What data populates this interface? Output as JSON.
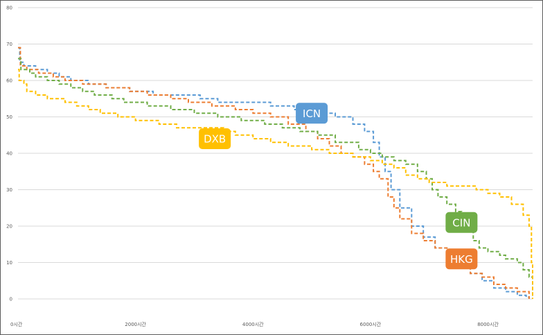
{
  "chart_data": {
    "type": "line",
    "title": "",
    "xlabel": "",
    "ylabel": "",
    "xlim": [
      0,
      8760
    ],
    "ylim": [
      0,
      80
    ],
    "y_ticks": [
      0,
      10,
      20,
      30,
      40,
      50,
      60,
      70,
      80
    ],
    "x_ticks": [
      {
        "value": 0,
        "label": "0시간"
      },
      {
        "value": 2000,
        "label": "2000시간"
      },
      {
        "value": 4000,
        "label": "4000시간"
      },
      {
        "value": 6000,
        "label": "6000시간"
      },
      {
        "value": 8000,
        "label": "8000시간"
      }
    ],
    "grid": true,
    "legend": "none",
    "series": [
      {
        "name": "ICN",
        "color": "#5b9bd5",
        "label_at": [
          5000,
          51
        ],
        "points": [
          [
            0,
            69
          ],
          [
            30,
            65
          ],
          [
            100,
            64
          ],
          [
            300,
            63
          ],
          [
            500,
            62
          ],
          [
            700,
            61
          ],
          [
            900,
            60
          ],
          [
            1200,
            59
          ],
          [
            1500,
            58
          ],
          [
            1900,
            57
          ],
          [
            2300,
            56
          ],
          [
            2700,
            56
          ],
          [
            3100,
            55
          ],
          [
            3400,
            54
          ],
          [
            3900,
            54
          ],
          [
            4300,
            53
          ],
          [
            4700,
            52
          ],
          [
            5100,
            51
          ],
          [
            5400,
            50
          ],
          [
            5700,
            48
          ],
          [
            5900,
            46
          ],
          [
            6050,
            43
          ],
          [
            6150,
            39
          ],
          [
            6250,
            35
          ],
          [
            6350,
            30
          ],
          [
            6500,
            25
          ],
          [
            6700,
            20
          ],
          [
            6900,
            17
          ],
          [
            7100,
            14
          ],
          [
            7300,
            11
          ],
          [
            7500,
            9
          ],
          [
            7700,
            7
          ],
          [
            7900,
            5
          ],
          [
            8100,
            3
          ],
          [
            8300,
            2
          ],
          [
            8500,
            1
          ],
          [
            8650,
            0.5
          ],
          [
            8700,
            0
          ]
        ]
      },
      {
        "name": "HKG",
        "color": "#ed7d31",
        "label_at": [
          7550,
          11
        ],
        "points": [
          [
            0,
            69
          ],
          [
            40,
            64
          ],
          [
            150,
            63
          ],
          [
            350,
            62
          ],
          [
            600,
            61
          ],
          [
            800,
            60
          ],
          [
            1100,
            59
          ],
          [
            1500,
            58
          ],
          [
            1900,
            57
          ],
          [
            2200,
            56
          ],
          [
            2600,
            55
          ],
          [
            2900,
            54
          ],
          [
            3300,
            53
          ],
          [
            3700,
            52
          ],
          [
            4000,
            51
          ],
          [
            4300,
            50
          ],
          [
            4600,
            48
          ],
          [
            4900,
            46
          ],
          [
            5100,
            44
          ],
          [
            5300,
            42
          ],
          [
            5500,
            40
          ],
          [
            5700,
            39
          ],
          [
            5900,
            37
          ],
          [
            6050,
            35
          ],
          [
            6150,
            33
          ],
          [
            6300,
            28
          ],
          [
            6400,
            25
          ],
          [
            6500,
            22
          ],
          [
            6700,
            18
          ],
          [
            6900,
            16
          ],
          [
            7100,
            14
          ],
          [
            7300,
            12
          ],
          [
            7500,
            9
          ],
          [
            7700,
            7
          ],
          [
            7900,
            6
          ],
          [
            8100,
            4
          ],
          [
            8300,
            3
          ],
          [
            8500,
            2
          ],
          [
            8700,
            0
          ]
        ]
      },
      {
        "name": "CIN",
        "color": "#70ad47",
        "label_at": [
          7550,
          21
        ],
        "points": [
          [
            0,
            66
          ],
          [
            50,
            63
          ],
          [
            200,
            62
          ],
          [
            300,
            61
          ],
          [
            500,
            60
          ],
          [
            700,
            59
          ],
          [
            900,
            58
          ],
          [
            1100,
            57
          ],
          [
            1300,
            56
          ],
          [
            1600,
            55
          ],
          [
            1800,
            54
          ],
          [
            2200,
            53
          ],
          [
            2600,
            52
          ],
          [
            3000,
            51
          ],
          [
            3400,
            50
          ],
          [
            3800,
            49
          ],
          [
            4200,
            48
          ],
          [
            4500,
            47
          ],
          [
            4800,
            46
          ],
          [
            5100,
            45
          ],
          [
            5400,
            43
          ],
          [
            5800,
            41
          ],
          [
            6000,
            40
          ],
          [
            6200,
            39
          ],
          [
            6400,
            38
          ],
          [
            6600,
            37
          ],
          [
            6800,
            35
          ],
          [
            6950,
            33
          ],
          [
            7050,
            30
          ],
          [
            7150,
            28
          ],
          [
            7300,
            26
          ],
          [
            7450,
            24
          ],
          [
            7550,
            22
          ],
          [
            7650,
            19
          ],
          [
            7750,
            16
          ],
          [
            7850,
            14
          ],
          [
            8000,
            13
          ],
          [
            8200,
            12
          ],
          [
            8300,
            11
          ],
          [
            8500,
            10
          ],
          [
            8600,
            8
          ],
          [
            8700,
            6
          ],
          [
            8760,
            0
          ]
        ]
      },
      {
        "name": "DXB",
        "color": "#ffc000",
        "label_at": [
          3350,
          44
        ],
        "points": [
          [
            0,
            63
          ],
          [
            20,
            60
          ],
          [
            100,
            59
          ],
          [
            150,
            57
          ],
          [
            300,
            56
          ],
          [
            500,
            55
          ],
          [
            800,
            54
          ],
          [
            1000,
            53
          ],
          [
            1200,
            52
          ],
          [
            1400,
            51
          ],
          [
            1700,
            50
          ],
          [
            2000,
            49
          ],
          [
            2400,
            48
          ],
          [
            2700,
            47
          ],
          [
            3000,
            47
          ],
          [
            3500,
            46
          ],
          [
            3700,
            45
          ],
          [
            4000,
            44
          ],
          [
            4300,
            43
          ],
          [
            4600,
            42
          ],
          [
            5000,
            41
          ],
          [
            5300,
            40
          ],
          [
            5700,
            39
          ],
          [
            6000,
            38
          ],
          [
            6200,
            37
          ],
          [
            6400,
            36
          ],
          [
            6600,
            34
          ],
          [
            6800,
            33
          ],
          [
            7000,
            32
          ],
          [
            7300,
            31
          ],
          [
            7600,
            31
          ],
          [
            7800,
            30
          ],
          [
            8000,
            29
          ],
          [
            8200,
            28
          ],
          [
            8400,
            26
          ],
          [
            8600,
            23
          ],
          [
            8700,
            20
          ],
          [
            8740,
            10
          ],
          [
            8760,
            0
          ]
        ]
      }
    ]
  }
}
